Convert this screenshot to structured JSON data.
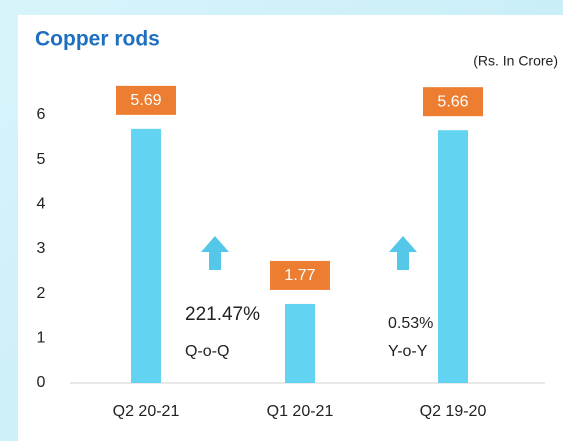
{
  "chart_data": {
    "type": "bar",
    "title": "Copper rods",
    "subtitle": "(Rs. In Crore)",
    "categories": [
      "Q2 20-21",
      "Q1 20-21",
      "Q2 19-20"
    ],
    "values": [
      5.69,
      1.77,
      5.66
    ],
    "color": "#62d3f0",
    "label_color": "#ed7d31",
    "ylim": [
      0,
      6
    ],
    "yticks": [
      0,
      1,
      2,
      3,
      4,
      5,
      6
    ],
    "grid": false,
    "annotations": [
      [
        "221.47%",
        "Q-o-Q"
      ],
      [
        "0.53%",
        "Y-o-Y"
      ]
    ]
  }
}
